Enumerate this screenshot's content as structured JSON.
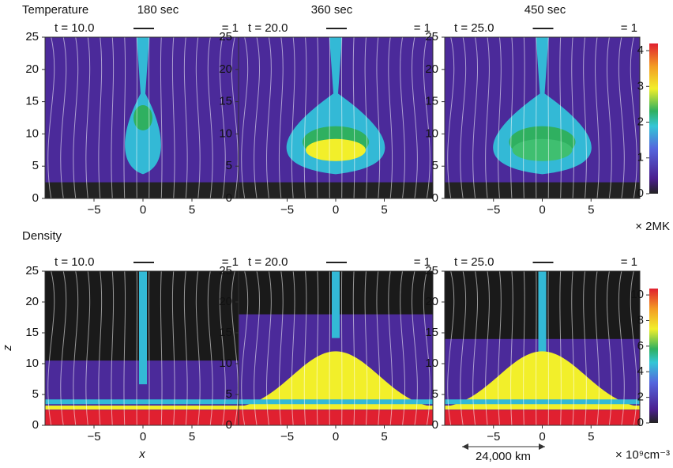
{
  "rows": [
    {
      "label": "Temperature",
      "colorbar": {
        "ticks": [
          0,
          1,
          2,
          3,
          4
        ],
        "lim": [
          0,
          4.2
        ],
        "unit": "× 2MK"
      }
    },
    {
      "label": "Density",
      "colorbar": {
        "ticks": [
          0,
          2,
          4,
          6,
          8,
          10
        ],
        "lim": [
          0,
          10.5
        ],
        "unit": "× 10⁹cm⁻³"
      }
    }
  ],
  "column_titles": [
    "180 sec",
    "360 sec",
    "450 sec"
  ],
  "times": [
    "t = 10.0",
    "t = 20.0",
    "t = 25.0"
  ],
  "arrow_label": "= 1",
  "x_axis": {
    "label": "x",
    "lim": [
      -10,
      10
    ],
    "ticks": [
      {
        "value": -5,
        "label": "−5"
      },
      0,
      5
    ]
  },
  "z_axis": {
    "label": "z",
    "lim": [
      0,
      25
    ],
    "ticks": [
      0,
      5,
      10,
      15,
      20,
      25
    ]
  },
  "scale_bar": "24,000 km"
}
